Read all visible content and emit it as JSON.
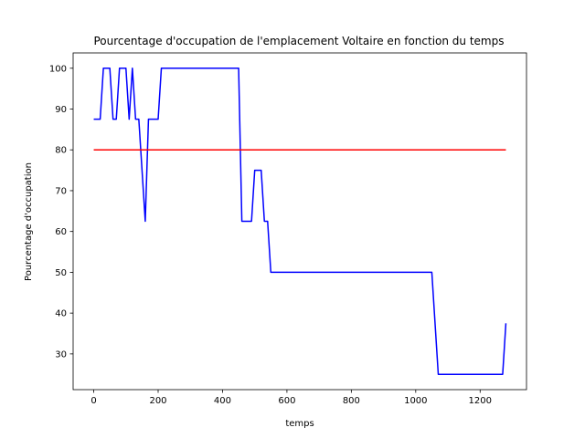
{
  "chart_data": {
    "type": "line",
    "title": "Pourcentage d'occupation de l'emplacement Voltaire en fonction du temps",
    "xlabel": "temps",
    "ylabel": "Pourcentage d'occupation",
    "xlim": [
      -64,
      1344
    ],
    "ylim": [
      21.25,
      103.75
    ],
    "xticks": [
      0,
      200,
      400,
      600,
      800,
      1000,
      1200
    ],
    "yticks": [
      30,
      40,
      50,
      60,
      70,
      80,
      90,
      100
    ],
    "grid": false,
    "series": [
      {
        "color": "#0000ff",
        "x": [
          0,
          20,
          30,
          50,
          60,
          70,
          80,
          100,
          110,
          120,
          130,
          140,
          160,
          170,
          180,
          200,
          210,
          450,
          460,
          490,
          500,
          520,
          530,
          540,
          550,
          1050,
          1070,
          1270,
          1280
        ],
        "y": [
          87.5,
          87.5,
          100,
          100,
          87.5,
          87.5,
          100,
          100,
          87.5,
          100,
          87.5,
          87.5,
          62.5,
          87.5,
          87.5,
          87.5,
          100,
          100,
          62.5,
          62.5,
          75,
          75,
          62.5,
          62.5,
          50,
          50,
          25,
          25,
          37.5
        ]
      },
      {
        "color": "#ff0000",
        "x": [
          0,
          1280
        ],
        "y": [
          80,
          80
        ]
      }
    ]
  }
}
